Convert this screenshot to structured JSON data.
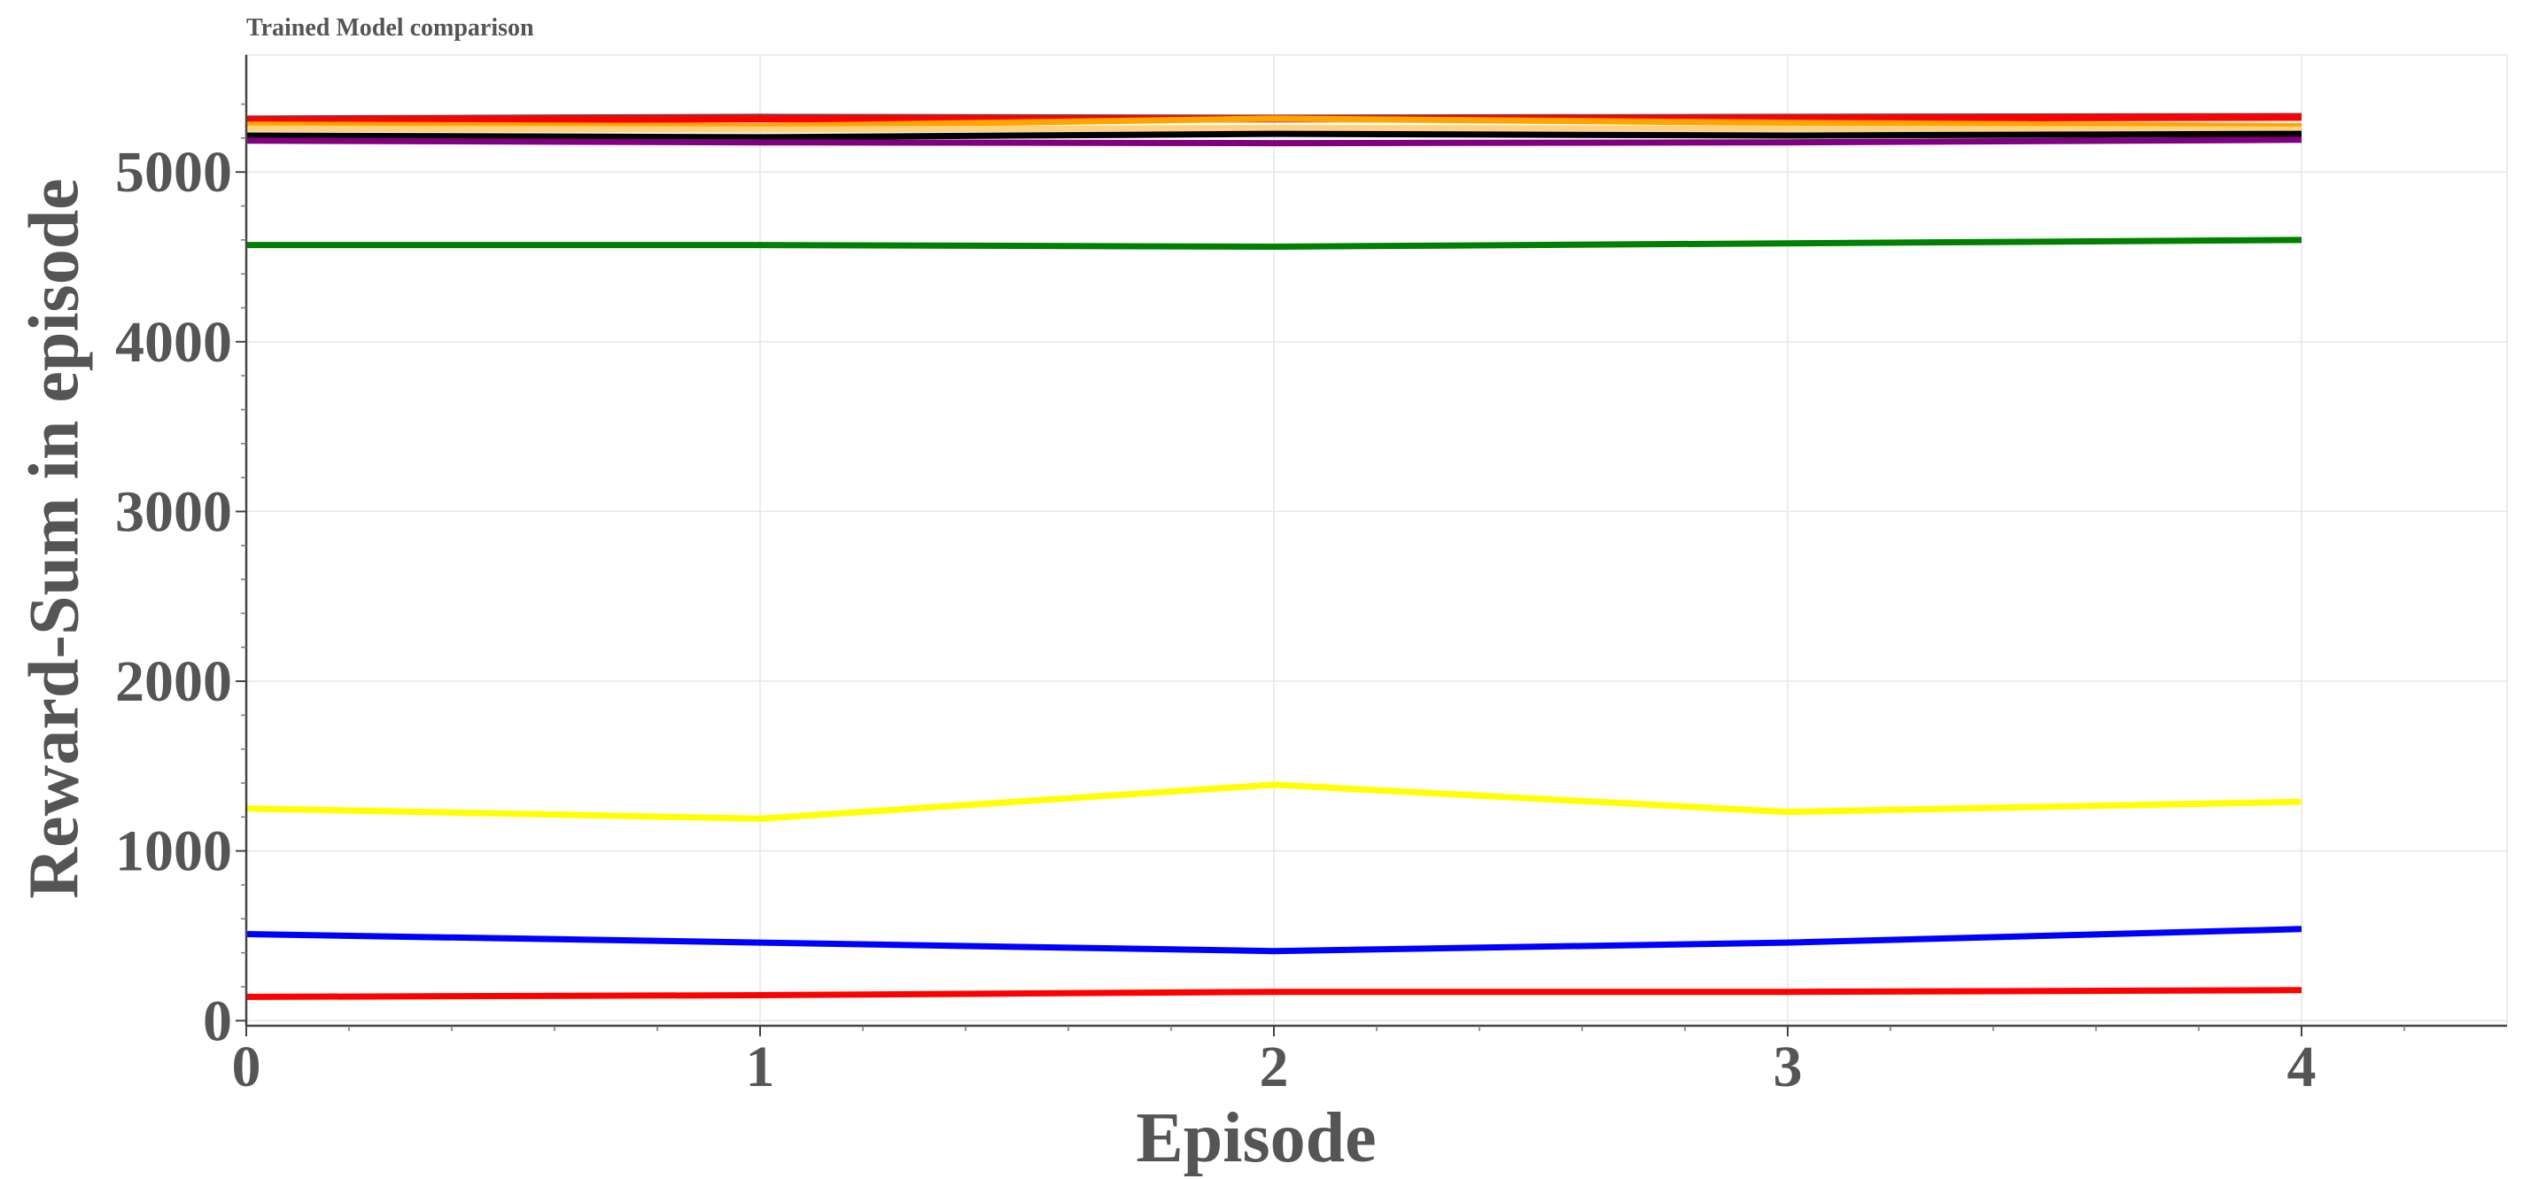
{
  "chart_data": {
    "type": "line",
    "title": "Trained Model comparison",
    "xlabel": "Episode",
    "ylabel": "Reward-Sum in episode",
    "x": [
      0,
      1,
      2,
      3,
      4
    ],
    "xticks": [
      "0",
      "1",
      "2",
      "3",
      "4"
    ],
    "yticks": [
      "0",
      "1000",
      "2000",
      "3000",
      "4000",
      "5000"
    ],
    "xlim": [
      0,
      4.4
    ],
    "ylim": [
      -30,
      5690
    ],
    "grid": true,
    "legend": "none",
    "series": [
      {
        "color": "#a52a2a",
        "values": [
          5315,
          5325,
          5320,
          5325,
          5330
        ]
      },
      {
        "color": "#ff0000",
        "values": [
          5305,
          5310,
          5310,
          5315,
          5320
        ]
      },
      {
        "color": "#ffa500",
        "values": [
          5280,
          5270,
          5315,
          5290,
          5270
        ]
      },
      {
        "color": "#ffd27f",
        "values": [
          5255,
          5250,
          5260,
          5255,
          5250
        ]
      },
      {
        "color": "#000000",
        "values": [
          5215,
          5205,
          5225,
          5215,
          5225
        ]
      },
      {
        "color": "#800080",
        "values": [
          5185,
          5175,
          5170,
          5175,
          5190
        ]
      },
      {
        "color": "#008000",
        "values": [
          4570,
          4570,
          4560,
          4580,
          4600
        ]
      },
      {
        "color": "#ffff00",
        "values": [
          1250,
          1190,
          1390,
          1230,
          1290
        ]
      },
      {
        "color": "#0000ff",
        "values": [
          510,
          460,
          410,
          460,
          540
        ]
      },
      {
        "color": "#ff0000",
        "values": [
          140,
          150,
          170,
          170,
          180
        ]
      }
    ]
  }
}
